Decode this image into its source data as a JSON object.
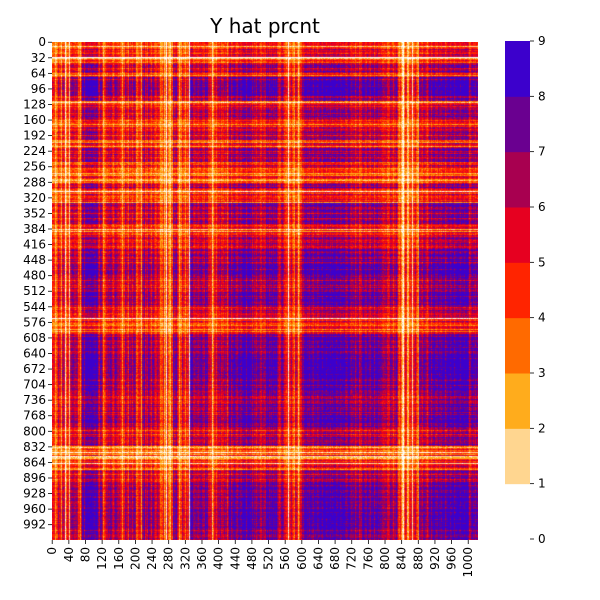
{
  "chart_data": {
    "type": "heatmap",
    "title": "Y hat prcnt",
    "xlabel": "",
    "ylabel": "",
    "n_rows": 1024,
    "n_cols": 1024,
    "x_ticks": [
      0,
      40,
      80,
      120,
      160,
      200,
      240,
      280,
      320,
      360,
      400,
      440,
      480,
      520,
      560,
      600,
      640,
      680,
      720,
      760,
      800,
      840,
      880,
      920,
      960,
      1000
    ],
    "y_ticks": [
      0,
      32,
      64,
      96,
      128,
      160,
      192,
      224,
      256,
      288,
      320,
      352,
      384,
      416,
      448,
      480,
      512,
      544,
      576,
      608,
      640,
      672,
      704,
      736,
      768,
      800,
      832,
      864,
      896,
      928,
      960,
      992
    ],
    "x_tick_labels": [
      "0",
      "40",
      "80",
      "120",
      "160",
      "200",
      "240",
      "280",
      "320",
      "360",
      "400",
      "440",
      "480",
      "520",
      "560",
      "600",
      "640",
      "680",
      "720",
      "760",
      "800",
      "840",
      "880",
      "920",
      "960",
      "1000"
    ],
    "y_tick_labels": [
      "0",
      "32",
      "64",
      "96",
      "128",
      "160",
      "192",
      "224",
      "256",
      "288",
      "320",
      "352",
      "384",
      "416",
      "448",
      "480",
      "512",
      "544",
      "576",
      "608",
      "640",
      "672",
      "704",
      "736",
      "768",
      "800",
      "832",
      "864",
      "896",
      "928",
      "960",
      "992"
    ],
    "value_range": [
      0,
      9
    ],
    "colorbar": {
      "ticks": [
        0,
        1,
        2,
        3,
        4,
        5,
        6,
        7,
        8,
        9
      ],
      "tick_labels": [
        "0",
        "1",
        "2",
        "3",
        "4",
        "5",
        "6",
        "7",
        "8",
        "9"
      ],
      "colors": [
        "#ffffff",
        "#ffd690",
        "#ffac1c",
        "#ff6a00",
        "#ff2400",
        "#e60020",
        "#a80050",
        "#6a0090",
        "#3c00cc",
        "#0000ff"
      ]
    },
    "profile_breakpoints": [
      0,
      12,
      30,
      42,
      60,
      70,
      80,
      110,
      120,
      132,
      160,
      175,
      200,
      215,
      245,
      262,
      290,
      300,
      330,
      345,
      375,
      395,
      425,
      455,
      480,
      510,
      540,
      560,
      600,
      640,
      690,
      720,
      740,
      765,
      790,
      810,
      830,
      860,
      880,
      905,
      960,
      1000,
      1024
    ],
    "profile_levels": [
      2,
      4,
      2,
      6,
      3,
      8,
      9,
      6,
      3,
      6,
      3,
      5,
      3,
      6,
      4,
      2,
      7,
      3,
      7,
      6,
      3,
      5,
      7,
      9,
      6,
      8,
      5,
      3,
      8,
      9,
      8,
      6,
      7,
      8,
      5,
      6,
      2,
      3,
      6,
      8,
      9,
      7
    ]
  }
}
